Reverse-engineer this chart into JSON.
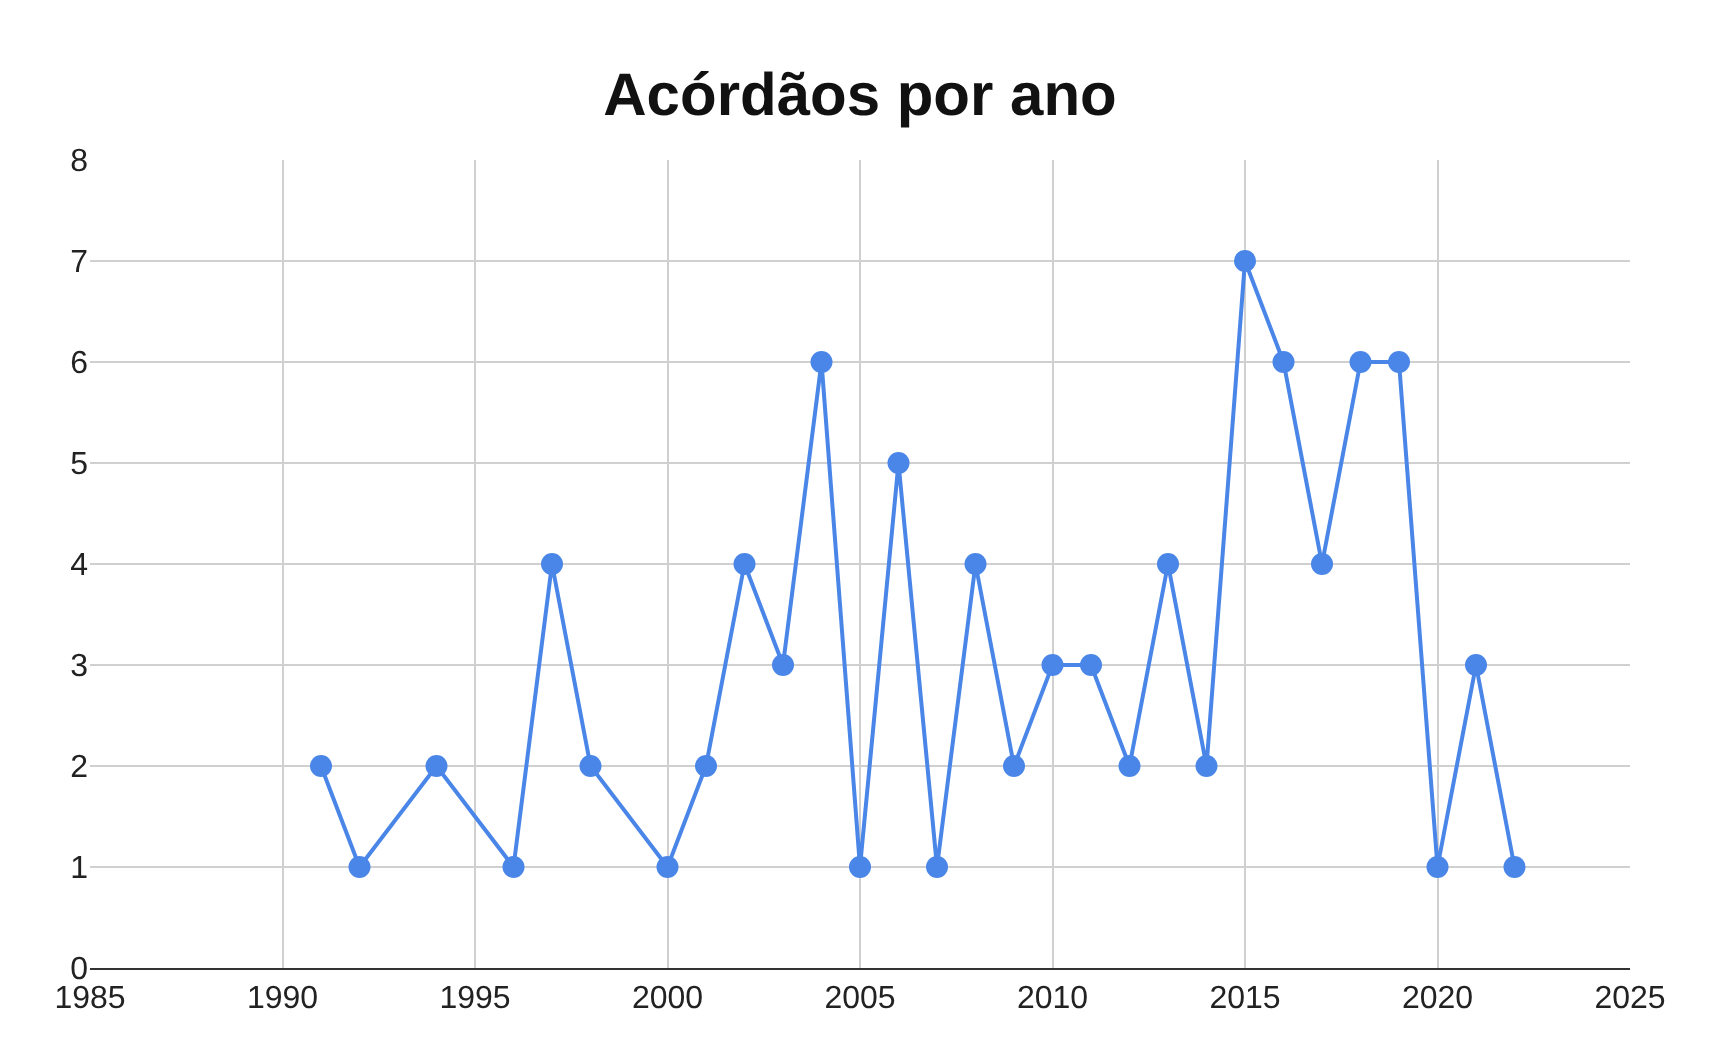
{
  "chart_data": {
    "type": "line",
    "title": "Acórdãos por ano",
    "x": [
      1991,
      1992,
      1994,
      1996,
      1997,
      1998,
      2000,
      2001,
      2002,
      2003,
      2004,
      2005,
      2006,
      2007,
      2008,
      2009,
      2010,
      2011,
      2012,
      2013,
      2014,
      2015,
      2016,
      2017,
      2018,
      2019,
      2020,
      2021,
      2022
    ],
    "series": [
      {
        "color": "#4a86e8",
        "values": [
          2,
          1,
          2,
          1,
          4,
          2,
          1,
          2,
          4,
          3,
          6,
          1,
          5,
          1,
          4,
          2,
          3,
          3,
          2,
          4,
          2,
          7,
          6,
          4,
          6,
          6,
          1,
          3,
          1
        ]
      }
    ],
    "xlim": [
      1985,
      2025
    ],
    "xticks": [
      1985,
      1990,
      1995,
      2000,
      2005,
      2010,
      2015,
      2020,
      2025
    ],
    "ylim": [
      0,
      8
    ],
    "yticks": [
      0,
      1,
      2,
      3,
      4,
      5,
      6,
      7,
      8
    ],
    "grid": true,
    "marker": "circle",
    "line_style": "solid"
  }
}
